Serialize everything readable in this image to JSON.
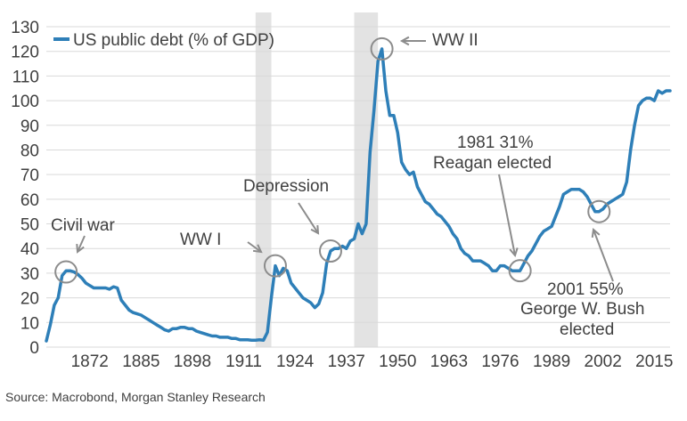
{
  "chart_data": {
    "type": "line",
    "title": "",
    "xlabel": "",
    "ylabel": "",
    "xlim": [
      1861,
      2019
    ],
    "ylim": [
      0,
      130
    ],
    "y_ticks": [
      0,
      10,
      20,
      30,
      40,
      50,
      60,
      70,
      80,
      90,
      100,
      110,
      120,
      130
    ],
    "x_ticks": [
      1872,
      1885,
      1898,
      1911,
      1924,
      1937,
      1950,
      1963,
      1976,
      1989,
      2002,
      2015
    ],
    "grid": "horizontal",
    "legend": "top-left",
    "shaded_periods": [
      [
        1914,
        1918
      ],
      [
        1939,
        1945
      ]
    ],
    "series": [
      {
        "name": "US public debt (% of GDP)",
        "color": "#2e7fb8",
        "points": [
          [
            1861,
            2.5
          ],
          [
            1862,
            9
          ],
          [
            1863,
            17
          ],
          [
            1864,
            20
          ],
          [
            1865,
            29
          ],
          [
            1866,
            31
          ],
          [
            1867,
            31
          ],
          [
            1868,
            30.5
          ],
          [
            1869,
            29.5
          ],
          [
            1870,
            28
          ],
          [
            1871,
            26
          ],
          [
            1872,
            25
          ],
          [
            1873,
            24
          ],
          [
            1874,
            24
          ],
          [
            1875,
            24
          ],
          [
            1876,
            24
          ],
          [
            1877,
            23.5
          ],
          [
            1878,
            24.5
          ],
          [
            1879,
            24
          ],
          [
            1880,
            19
          ],
          [
            1881,
            17
          ],
          [
            1882,
            15
          ],
          [
            1883,
            14
          ],
          [
            1884,
            13.5
          ],
          [
            1885,
            13
          ],
          [
            1886,
            12
          ],
          [
            1887,
            11
          ],
          [
            1888,
            10
          ],
          [
            1889,
            9
          ],
          [
            1890,
            8
          ],
          [
            1891,
            7
          ],
          [
            1892,
            6.5
          ],
          [
            1893,
            7.5
          ],
          [
            1894,
            7.5
          ],
          [
            1895,
            8
          ],
          [
            1896,
            8
          ],
          [
            1897,
            7.5
          ],
          [
            1898,
            7.5
          ],
          [
            1899,
            6.5
          ],
          [
            1900,
            6
          ],
          [
            1901,
            5.5
          ],
          [
            1902,
            5
          ],
          [
            1903,
            4.5
          ],
          [
            1904,
            4.5
          ],
          [
            1905,
            4
          ],
          [
            1906,
            4
          ],
          [
            1907,
            4
          ],
          [
            1908,
            3.5
          ],
          [
            1909,
            3.5
          ],
          [
            1910,
            3
          ],
          [
            1911,
            3
          ],
          [
            1912,
            3
          ],
          [
            1913,
            2.8
          ],
          [
            1914,
            2.8
          ],
          [
            1915,
            3
          ],
          [
            1916,
            2.8
          ],
          [
            1917,
            6
          ],
          [
            1918,
            20
          ],
          [
            1919,
            33
          ],
          [
            1920,
            29
          ],
          [
            1921,
            32
          ],
          [
            1922,
            31
          ],
          [
            1923,
            26
          ],
          [
            1924,
            24
          ],
          [
            1925,
            22
          ],
          [
            1926,
            20
          ],
          [
            1927,
            19
          ],
          [
            1928,
            18
          ],
          [
            1929,
            16
          ],
          [
            1930,
            17.5
          ],
          [
            1931,
            22
          ],
          [
            1932,
            34
          ],
          [
            1933,
            39
          ],
          [
            1934,
            40
          ],
          [
            1935,
            40
          ],
          [
            1936,
            41
          ],
          [
            1937,
            40
          ],
          [
            1938,
            43
          ],
          [
            1939,
            44
          ],
          [
            1940,
            50
          ],
          [
            1941,
            46
          ],
          [
            1942,
            50
          ],
          [
            1943,
            79
          ],
          [
            1944,
            96
          ],
          [
            1945,
            116
          ],
          [
            1946,
            121
          ],
          [
            1947,
            104
          ],
          [
            1948,
            94
          ],
          [
            1949,
            94
          ],
          [
            1950,
            87
          ],
          [
            1951,
            75
          ],
          [
            1952,
            72
          ],
          [
            1953,
            70
          ],
          [
            1954,
            71
          ],
          [
            1955,
            65
          ],
          [
            1956,
            62
          ],
          [
            1957,
            59
          ],
          [
            1958,
            58
          ],
          [
            1959,
            56
          ],
          [
            1960,
            54
          ],
          [
            1961,
            53
          ],
          [
            1962,
            51
          ],
          [
            1963,
            49
          ],
          [
            1964,
            46
          ],
          [
            1965,
            44
          ],
          [
            1966,
            40
          ],
          [
            1967,
            38
          ],
          [
            1968,
            37
          ],
          [
            1969,
            35
          ],
          [
            1970,
            35
          ],
          [
            1971,
            35
          ],
          [
            1972,
            34
          ],
          [
            1973,
            33
          ],
          [
            1974,
            31
          ],
          [
            1975,
            31
          ],
          [
            1976,
            33
          ],
          [
            1977,
            33
          ],
          [
            1978,
            32
          ],
          [
            1979,
            31
          ],
          [
            1980,
            31
          ],
          [
            1981,
            31
          ],
          [
            1982,
            34
          ],
          [
            1983,
            37
          ],
          [
            1984,
            39
          ],
          [
            1985,
            42
          ],
          [
            1986,
            45
          ],
          [
            1987,
            47
          ],
          [
            1988,
            48
          ],
          [
            1989,
            49
          ],
          [
            1990,
            53
          ],
          [
            1991,
            57
          ],
          [
            1992,
            62
          ],
          [
            1993,
            63
          ],
          [
            1994,
            64
          ],
          [
            1995,
            64
          ],
          [
            1996,
            64
          ],
          [
            1997,
            63
          ],
          [
            1998,
            61
          ],
          [
            1999,
            58
          ],
          [
            2000,
            55
          ],
          [
            2001,
            55
          ],
          [
            2002,
            56
          ],
          [
            2003,
            58
          ],
          [
            2004,
            59
          ],
          [
            2005,
            60
          ],
          [
            2006,
            61
          ],
          [
            2007,
            62
          ],
          [
            2008,
            67
          ],
          [
            2009,
            80
          ],
          [
            2010,
            90
          ],
          [
            2011,
            98
          ],
          [
            2012,
            100
          ],
          [
            2013,
            101
          ],
          [
            2014,
            101
          ],
          [
            2015,
            100
          ],
          [
            2016,
            104
          ],
          [
            2017,
            103
          ],
          [
            2018,
            104
          ],
          [
            2019,
            104
          ]
        ]
      }
    ],
    "annotations": [
      {
        "lines": [
          "Civil war"
        ],
        "circle": [
          1866,
          30.5
        ]
      },
      {
        "lines": [
          "WW I"
        ],
        "circle": [
          1919,
          33
        ]
      },
      {
        "lines": [
          "Depression"
        ],
        "circle": [
          1933,
          39
        ]
      },
      {
        "lines": [
          "WW II"
        ],
        "circle": [
          1946,
          121
        ]
      },
      {
        "lines": [
          "1981 31%",
          "Reagan elected"
        ],
        "circle": [
          1981,
          31
        ]
      },
      {
        "lines": [
          "2001 55%",
          "George W. Bush",
          "elected"
        ],
        "circle": [
          2001,
          55
        ]
      }
    ]
  },
  "source": "Source: Macrobond, Morgan Stanley Research"
}
